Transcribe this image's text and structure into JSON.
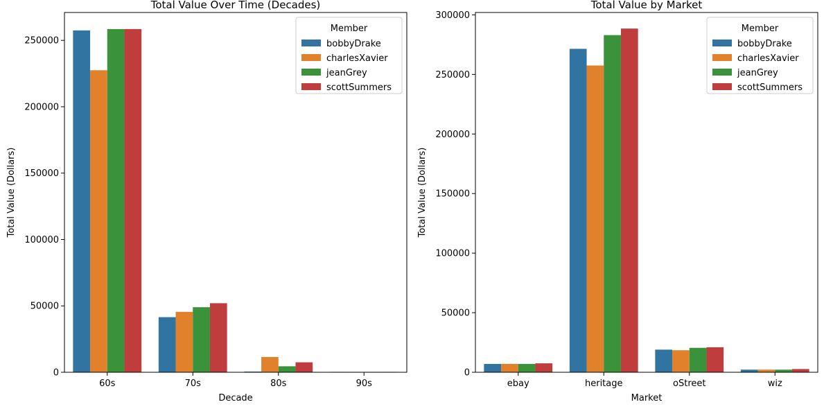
{
  "palette": [
    "#3274a1",
    "#e1812c",
    "#3a923a",
    "#c03d3e"
  ],
  "chart_data": [
    {
      "type": "bar",
      "title": "Total Value Over Time (Decades)",
      "xlabel": "Decade",
      "ylabel": "Total Value (Dollars)",
      "categories": [
        "60s",
        "70s",
        "80s",
        "90s"
      ],
      "ylim": [
        0,
        271000
      ],
      "yticks": [
        0,
        50000,
        100000,
        150000,
        200000,
        250000
      ],
      "grid": false,
      "legend": {
        "title": "Member",
        "placement": "top-right"
      },
      "series": [
        {
          "name": "bobbyDrake",
          "values": [
            257500,
            41500,
            500,
            300
          ]
        },
        {
          "name": "charlesXavier",
          "values": [
            227500,
            45500,
            11500,
            300
          ]
        },
        {
          "name": "jeanGrey",
          "values": [
            258500,
            49000,
            4500,
            300
          ]
        },
        {
          "name": "scottSummers",
          "values": [
            258500,
            52000,
            7500,
            300
          ]
        }
      ]
    },
    {
      "type": "bar",
      "title": "Total Value by Market",
      "xlabel": "Market",
      "ylabel": "Total Value (Dollars)",
      "categories": [
        "ebay",
        "heritage",
        "oStreet",
        "wiz"
      ],
      "ylim": [
        0,
        302000
      ],
      "yticks": [
        0,
        50000,
        100000,
        150000,
        200000,
        250000,
        300000
      ],
      "grid": false,
      "legend": {
        "title": "Member",
        "placement": "top-right"
      },
      "series": [
        {
          "name": "bobbyDrake",
          "values": [
            7000,
            271500,
            19000,
            2200
          ]
        },
        {
          "name": "charlesXavier",
          "values": [
            7000,
            257500,
            18500,
            2200
          ]
        },
        {
          "name": "jeanGrey",
          "values": [
            7000,
            283000,
            20500,
            2200
          ]
        },
        {
          "name": "scottSummers",
          "values": [
            7500,
            288500,
            21000,
            2700
          ]
        }
      ]
    }
  ]
}
